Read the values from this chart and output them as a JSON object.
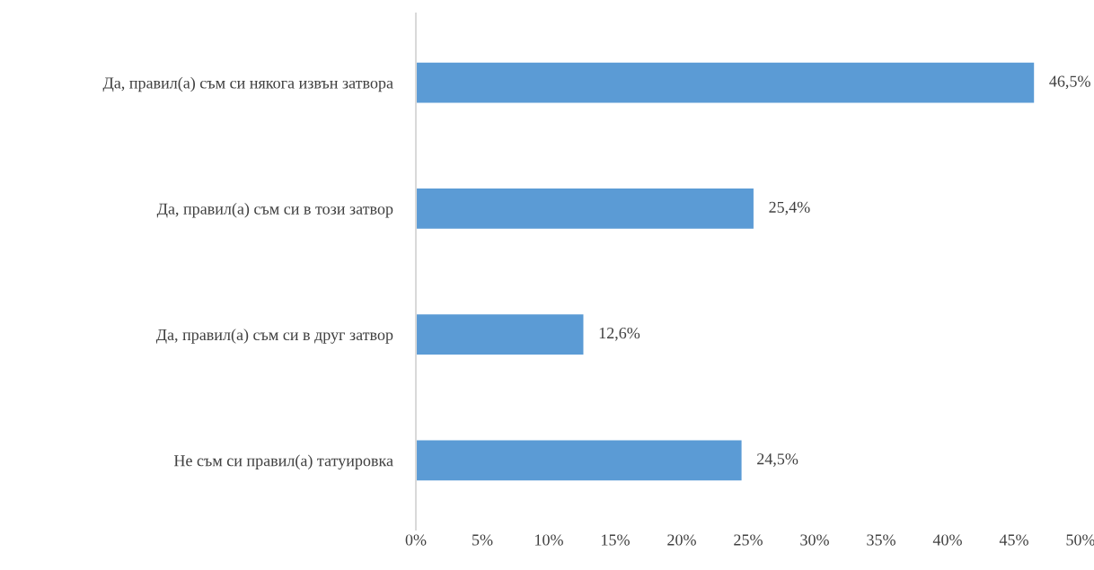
{
  "chart_data": {
    "type": "bar",
    "orientation": "horizontal",
    "categories": [
      "Да, правил(а) съм си някога извън затвора",
      "Да, правил(а) съм си в този затвор",
      "Да, правил(а) съм си в друг затвор",
      "Не съм си правил(а) татуировка"
    ],
    "values": [
      46.5,
      25.4,
      12.6,
      24.5
    ],
    "value_labels": [
      "46,5%",
      "25,4%",
      "12,6%",
      "24,5%"
    ],
    "color": "#5b9bd5",
    "xlim": [
      0,
      50
    ],
    "xticks": [
      {
        "value": 0,
        "label": "0%"
      },
      {
        "value": 5,
        "label": "5%"
      },
      {
        "value": 10,
        "label": "10%"
      },
      {
        "value": 15,
        "label": "15%"
      },
      {
        "value": 20,
        "label": "20%"
      },
      {
        "value": 25,
        "label": "25%"
      },
      {
        "value": 30,
        "label": "30%"
      },
      {
        "value": 35,
        "label": "35%"
      },
      {
        "value": 40,
        "label": "40%"
      },
      {
        "value": 45,
        "label": "45%"
      },
      {
        "value": 50,
        "label": "50%"
      }
    ],
    "grid": false,
    "legend": false
  }
}
